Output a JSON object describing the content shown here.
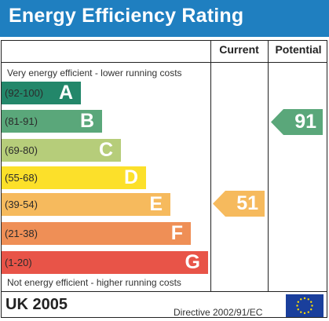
{
  "header": {
    "title": "Energy Efficiency Rating"
  },
  "columns": {
    "current": "Current",
    "potential": "Potential"
  },
  "notes": {
    "top": "Very energy efficient - lower running costs",
    "bottom": "Not energy efficient - higher running costs"
  },
  "bands": [
    {
      "range": "(92-100)",
      "letter": "A",
      "color": "#23876a"
    },
    {
      "range": "(81-91)",
      "letter": "B",
      "color": "#5aa77a"
    },
    {
      "range": "(69-80)",
      "letter": "C",
      "color": "#b6cd7a"
    },
    {
      "range": "(55-68)",
      "letter": "D",
      "color": "#fce02a"
    },
    {
      "range": "(39-54)",
      "letter": "E",
      "color": "#f6ba5d"
    },
    {
      "range": "(21-38)",
      "letter": "F",
      "color": "#ef8f56"
    },
    {
      "range": "(1-20)",
      "letter": "G",
      "color": "#e85448"
    }
  ],
  "ratings": {
    "current": {
      "value": "51",
      "band": "E",
      "color": "#f6ba5d"
    },
    "potential": {
      "value": "91",
      "band": "B",
      "color": "#5aa77a"
    }
  },
  "footer": {
    "country": "UK 2005",
    "directive": "Directive 2002/91/EC",
    "flag_icon": "eu-flag-icon"
  }
}
